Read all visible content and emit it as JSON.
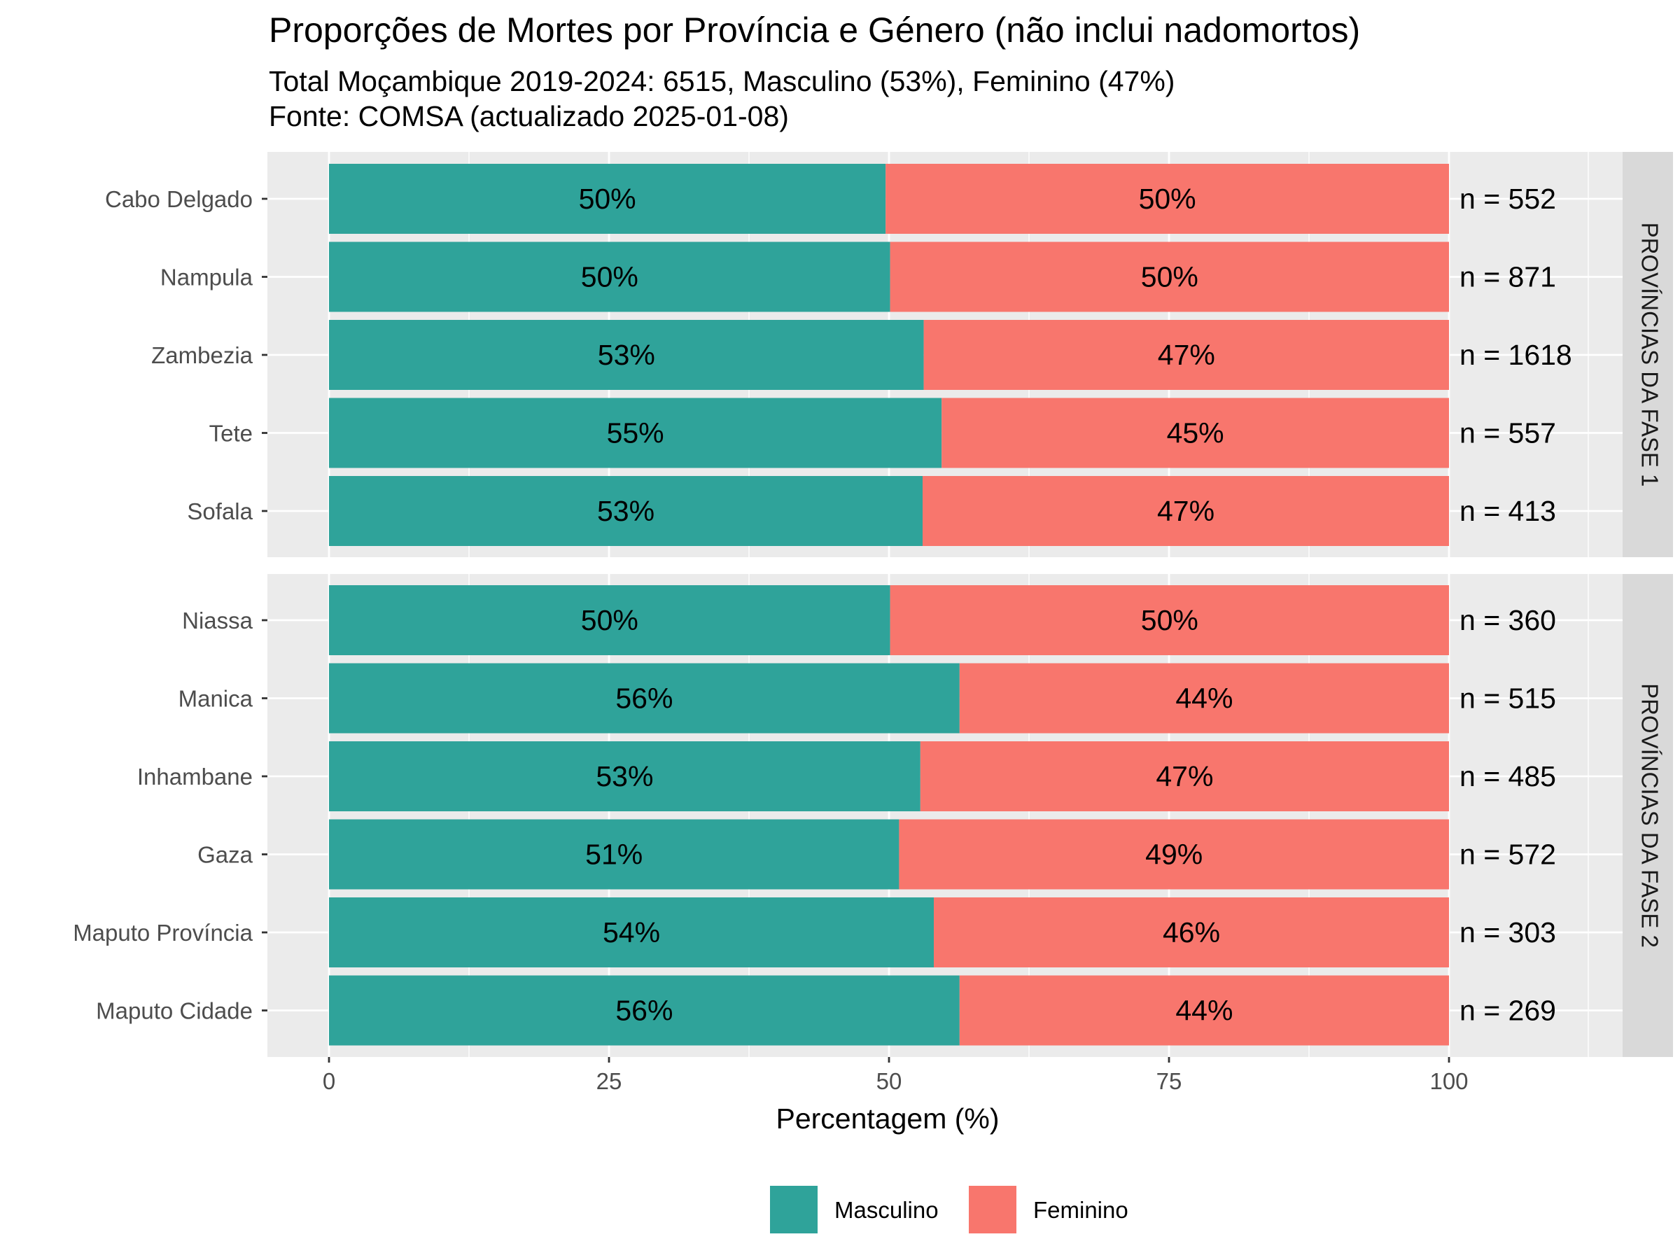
{
  "chart_data": {
    "type": "bar",
    "orientation": "horizontal",
    "stacked": true,
    "title": "Proporções de Mortes por Província e Género (não inclui nadomortos)",
    "subtitle_lines": [
      "Total Moçambique 2019-2024: 6515, Masculino (53%), Feminino (47%)",
      "Fonte: COMSA (actualizado 2025-01-08)"
    ],
    "xlabel": "Percentagem (%)",
    "xlim": [
      0,
      100
    ],
    "xticks": [
      0,
      25,
      50,
      75,
      100
    ],
    "grid": true,
    "legend_position": "bottom",
    "series": [
      {
        "name": "Masculino",
        "color": "#2fa39a"
      },
      {
        "name": "Feminino",
        "color": "#f8766d"
      }
    ],
    "facets": [
      {
        "label": "PROVÍNCIAS DA FASE 1",
        "rows": [
          {
            "province": "Cabo Delgado",
            "masculino": 49.7,
            "feminino": 50.3,
            "label_m": "50%",
            "label_f": "50%",
            "n_label": "n = 552"
          },
          {
            "province": "Nampula",
            "masculino": 50.1,
            "feminino": 49.9,
            "label_m": "50%",
            "label_f": "50%",
            "n_label": "n = 871"
          },
          {
            "province": "Zambezia",
            "masculino": 53.1,
            "feminino": 46.9,
            "label_m": "53%",
            "label_f": "47%",
            "n_label": "n = 1618"
          },
          {
            "province": "Tete",
            "masculino": 54.7,
            "feminino": 45.3,
            "label_m": "55%",
            "label_f": "45%",
            "n_label": "n = 557"
          },
          {
            "province": "Sofala",
            "masculino": 53.0,
            "feminino": 47.0,
            "label_m": "53%",
            "label_f": "47%",
            "n_label": "n = 413"
          }
        ]
      },
      {
        "label": "PROVÍNCIAS DA FASE 2",
        "rows": [
          {
            "province": "Niassa",
            "masculino": 50.1,
            "feminino": 49.9,
            "label_m": "50%",
            "label_f": "50%",
            "n_label": "n = 360"
          },
          {
            "province": "Manica",
            "masculino": 56.3,
            "feminino": 43.7,
            "label_m": "56%",
            "label_f": "44%",
            "n_label": "n = 515"
          },
          {
            "province": "Inhambane",
            "masculino": 52.8,
            "feminino": 47.2,
            "label_m": "53%",
            "label_f": "47%",
            "n_label": "n = 485"
          },
          {
            "province": "Gaza",
            "masculino": 50.9,
            "feminino": 49.1,
            "label_m": "51%",
            "label_f": "49%",
            "n_label": "n = 572"
          },
          {
            "province": "Maputo Província",
            "masculino": 54.0,
            "feminino": 46.0,
            "label_m": "54%",
            "label_f": "46%",
            "n_label": "n = 303"
          },
          {
            "province": "Maputo Cidade",
            "masculino": 56.3,
            "feminino": 43.7,
            "label_m": "56%",
            "label_f": "44%",
            "n_label": "n = 269"
          }
        ]
      }
    ]
  }
}
